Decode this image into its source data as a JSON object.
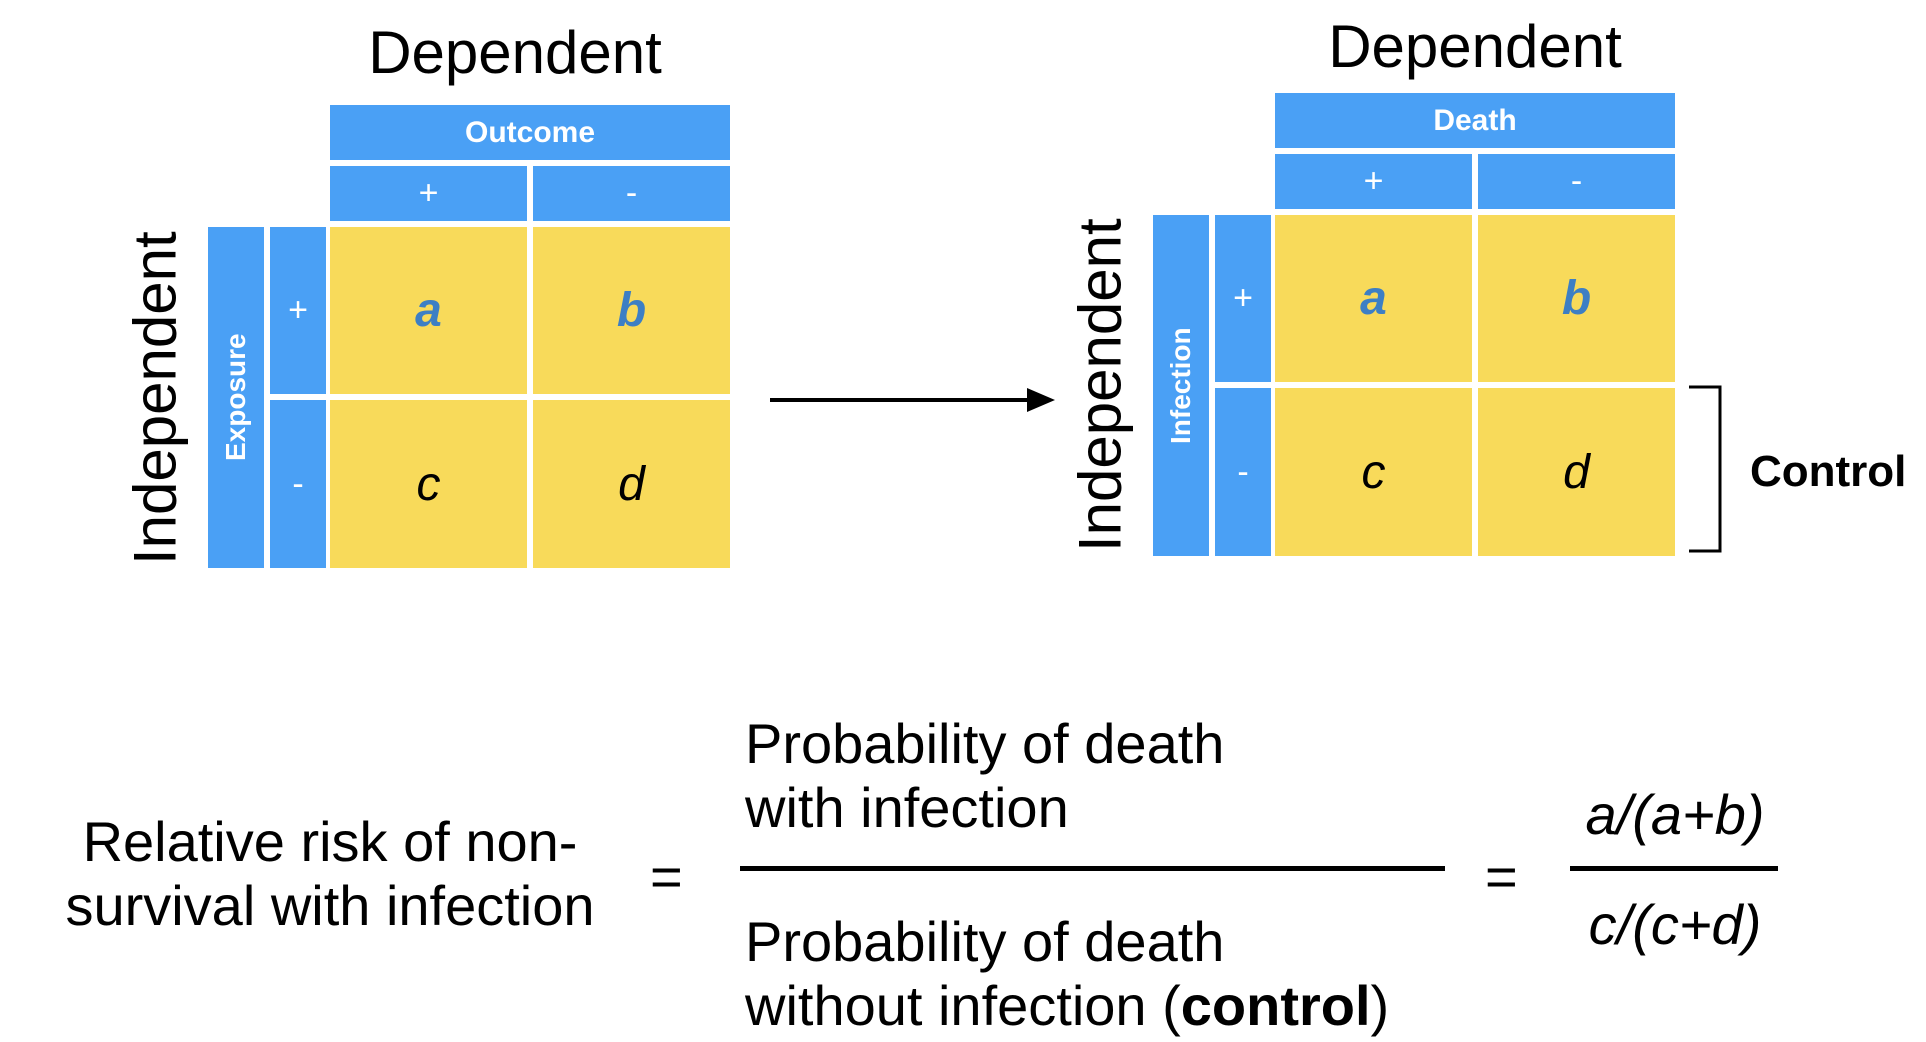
{
  "left_table": {
    "dependent_label": "Dependent",
    "independent_label": "Independent",
    "column_header": "Outcome",
    "row_header": "Exposure",
    "col_plus": "+",
    "col_minus": "-",
    "row_plus": "+",
    "row_minus": "-",
    "cells": {
      "a": "a",
      "b": "b",
      "c": "c",
      "d": "d"
    }
  },
  "right_table": {
    "dependent_label": "Dependent",
    "independent_label": "Independent",
    "column_header": "Death",
    "row_header": "Infection",
    "col_plus": "+",
    "col_minus": "-",
    "row_plus": "+",
    "row_minus": "-",
    "cells": {
      "a": "a",
      "b": "b",
      "c": "c",
      "d": "d"
    },
    "control_label": "Control"
  },
  "formula": {
    "lhs_line1": "Relative risk of non-",
    "lhs_line2": "survival with infection",
    "equals": "=",
    "numerator_line1": "Probability of death",
    "numerator_line2": "with infection",
    "denominator_line1": "Probability of death",
    "denominator_line2_prefix": "without infection (",
    "denominator_line2_bold": "control",
    "denominator_line2_suffix": ")",
    "equals2": "=",
    "frac_numerator": "a/(a+b)",
    "frac_denominator": "c/(c+d)"
  },
  "colors": {
    "header_blue": "#4aa0f5",
    "cell_yellow": "#f8da5a",
    "letter_blue": "#3d7fc4"
  }
}
